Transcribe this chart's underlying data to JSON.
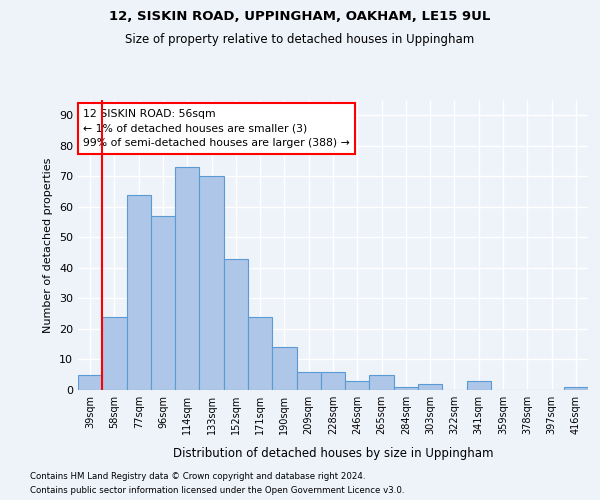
{
  "title": "12, SISKIN ROAD, UPPINGHAM, OAKHAM, LE15 9UL",
  "subtitle": "Size of property relative to detached houses in Uppingham",
  "xlabel": "Distribution of detached houses by size in Uppingham",
  "ylabel": "Number of detached properties",
  "categories": [
    "39sqm",
    "58sqm",
    "77sqm",
    "96sqm",
    "114sqm",
    "133sqm",
    "152sqm",
    "171sqm",
    "190sqm",
    "209sqm",
    "228sqm",
    "246sqm",
    "265sqm",
    "284sqm",
    "303sqm",
    "322sqm",
    "341sqm",
    "359sqm",
    "378sqm",
    "397sqm",
    "416sqm"
  ],
  "values": [
    5,
    24,
    64,
    57,
    73,
    70,
    43,
    24,
    14,
    6,
    6,
    3,
    5,
    1,
    2,
    0,
    3,
    0,
    0,
    0,
    1
  ],
  "bar_color": "#aec6e8",
  "bar_edge_color": "#5b9bd5",
  "annotation_title": "12 SISKIN ROAD: 56sqm",
  "annotation_line1": "← 1% of detached houses are smaller (3)",
  "annotation_line2": "99% of semi-detached houses are larger (388) →",
  "vline_x": 0.5,
  "ylim": [
    0,
    95
  ],
  "yticks": [
    0,
    10,
    20,
    30,
    40,
    50,
    60,
    70,
    80,
    90
  ],
  "background_color": "#eef2f9",
  "grid_color": "#ffffff",
  "footnote1": "Contains HM Land Registry data © Crown copyright and database right 2024.",
  "footnote2": "Contains public sector information licensed under the Open Government Licence v3.0."
}
